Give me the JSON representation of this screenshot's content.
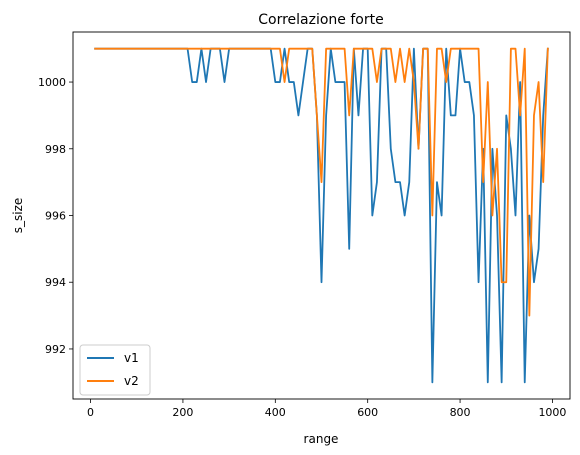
{
  "chart_data": {
    "type": "line",
    "title": "Correlazione forte",
    "xlabel": "range",
    "ylabel": "s_size",
    "xlim": [
      -38,
      1038
    ],
    "ylim": [
      990.5,
      1001.5
    ],
    "x_ticks": [
      0,
      200,
      400,
      600,
      800,
      1000
    ],
    "y_ticks": [
      992,
      994,
      996,
      998,
      1000
    ],
    "grid": false,
    "legend_position": "lower left",
    "x": [
      10,
      20,
      30,
      40,
      50,
      60,
      70,
      80,
      90,
      100,
      110,
      120,
      130,
      140,
      150,
      160,
      170,
      180,
      190,
      200,
      210,
      220,
      230,
      240,
      250,
      260,
      270,
      280,
      290,
      300,
      310,
      320,
      330,
      340,
      350,
      360,
      370,
      380,
      390,
      400,
      410,
      420,
      430,
      440,
      450,
      460,
      470,
      480,
      490,
      500,
      510,
      520,
      530,
      540,
      550,
      560,
      570,
      580,
      590,
      600,
      610,
      620,
      630,
      640,
      650,
      660,
      670,
      680,
      690,
      700,
      710,
      720,
      730,
      740,
      750,
      760,
      770,
      780,
      790,
      800,
      810,
      820,
      830,
      840,
      850,
      860,
      870,
      880,
      890,
      900,
      910,
      920,
      930,
      940,
      950,
      960,
      970,
      980,
      990
    ],
    "series": [
      {
        "name": "v1",
        "color": "#1f77b4",
        "values": [
          1001,
          1001,
          1001,
          1001,
          1001,
          1001,
          1001,
          1001,
          1001,
          1001,
          1001,
          1001,
          1001,
          1001,
          1001,
          1001,
          1001,
          1001,
          1001,
          1001,
          1001,
          1000,
          1000,
          1001,
          1000,
          1001,
          1001,
          1001,
          1000,
          1001,
          1001,
          1001,
          1001,
          1001,
          1001,
          1001,
          1001,
          1001,
          1001,
          1000,
          1000,
          1001,
          1000,
          1000,
          999,
          1000,
          1001,
          1001,
          999,
          994,
          999,
          1001,
          1000,
          1000,
          1000,
          995,
          1001,
          999,
          1001,
          1001,
          996,
          997,
          1001,
          1001,
          998,
          997,
          997,
          996,
          997,
          1001,
          998,
          1001,
          1001,
          991,
          997,
          996,
          1001,
          999,
          999,
          1001,
          1000,
          1000,
          999,
          994,
          998,
          991,
          998,
          996,
          991,
          999,
          998,
          996,
          1000,
          991,
          996,
          994,
          995,
          999,
          1001
        ]
      },
      {
        "name": "v2",
        "color": "#ff7f0e",
        "values": [
          1001,
          1001,
          1001,
          1001,
          1001,
          1001,
          1001,
          1001,
          1001,
          1001,
          1001,
          1001,
          1001,
          1001,
          1001,
          1001,
          1001,
          1001,
          1001,
          1001,
          1001,
          1001,
          1001,
          1001,
          1001,
          1001,
          1001,
          1001,
          1001,
          1001,
          1001,
          1001,
          1001,
          1001,
          1001,
          1001,
          1001,
          1001,
          1001,
          1001,
          1001,
          1000,
          1001,
          1001,
          1001,
          1001,
          1001,
          1001,
          999,
          997,
          1001,
          1001,
          1001,
          1001,
          1001,
          999,
          1001,
          1001,
          1001,
          1001,
          1001,
          1000,
          1001,
          1001,
          1001,
          1000,
          1001,
          1000,
          1001,
          1000,
          998,
          1001,
          1001,
          996,
          1001,
          1001,
          1000,
          1001,
          1001,
          1001,
          1001,
          1001,
          1001,
          1001,
          997,
          1000,
          996,
          998,
          994,
          994,
          1001,
          1001,
          999,
          1001,
          993,
          999,
          1000,
          997,
          1001
        ]
      }
    ]
  }
}
